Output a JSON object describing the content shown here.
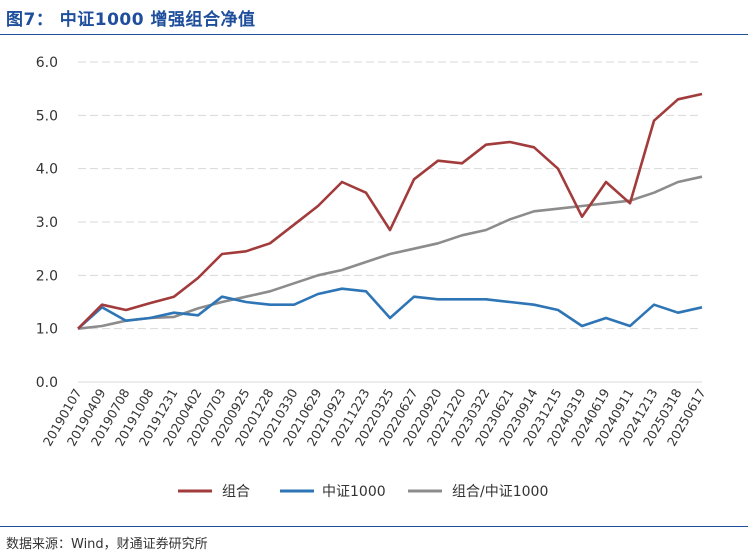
{
  "header": {
    "title": "图7： 中证1000 增强组合净值"
  },
  "footer": {
    "source": "数据来源：Wind，财通证券研究所"
  },
  "colors": {
    "accent": "#1e4e9c",
    "portfolio": "#a23b3b",
    "index": "#2e75b6",
    "ratio": "#8c8c8c",
    "grid": "#d9d9d9"
  },
  "chart_data": {
    "type": "line",
    "title": "",
    "xlabel": "",
    "ylabel": "",
    "ylim": [
      0,
      6
    ],
    "yticks": [
      "0.0",
      "1.0",
      "2.0",
      "3.0",
      "4.0",
      "5.0",
      "6.0"
    ],
    "grid": "horizontal dashed",
    "legend": "bottom-center",
    "x_tick_labels": [
      "20190107",
      "20190409",
      "20190708",
      "20191008",
      "20191231",
      "20200402",
      "20200703",
      "20200925",
      "20201228",
      "20210330",
      "20210629",
      "20210923",
      "20211223",
      "20220325",
      "20220627",
      "20220920",
      "20221220",
      "20230322",
      "20230621",
      "20230914",
      "20231215",
      "20240319",
      "20240619",
      "20240911",
      "20241213",
      "20250318",
      "20250617"
    ],
    "x": [
      "20190107",
      "20190409",
      "20190708",
      "20191008",
      "20191231",
      "20200402",
      "20200703",
      "20200925",
      "20201228",
      "20210330",
      "20210629",
      "20210923",
      "20211223",
      "20220325",
      "20220627",
      "20220920",
      "20221220",
      "20230322",
      "20230621",
      "20230914",
      "20231215",
      "20240319",
      "20240619",
      "20240911",
      "20241213",
      "20250318",
      "20250617"
    ],
    "series": [
      {
        "name": "组合",
        "values": [
          1.0,
          1.45,
          1.35,
          1.48,
          1.6,
          1.95,
          2.4,
          2.45,
          2.6,
          2.95,
          3.3,
          3.75,
          3.55,
          2.85,
          3.8,
          4.15,
          4.1,
          4.45,
          4.5,
          4.4,
          4.0,
          3.1,
          3.75,
          3.35,
          4.9,
          5.3,
          5.4
        ]
      },
      {
        "name": "中证1000",
        "values": [
          1.0,
          1.4,
          1.15,
          1.2,
          1.3,
          1.25,
          1.6,
          1.5,
          1.45,
          1.45,
          1.65,
          1.75,
          1.7,
          1.2,
          1.6,
          1.55,
          1.55,
          1.55,
          1.5,
          1.45,
          1.35,
          1.05,
          1.2,
          1.05,
          1.45,
          1.3,
          1.4
        ]
      },
      {
        "name": "组合/中证1000",
        "values": [
          1.0,
          1.05,
          1.15,
          1.2,
          1.22,
          1.38,
          1.5,
          1.6,
          1.7,
          1.85,
          2.0,
          2.1,
          2.25,
          2.4,
          2.5,
          2.6,
          2.75,
          2.85,
          3.05,
          3.2,
          3.25,
          3.3,
          3.35,
          3.4,
          3.55,
          3.75,
          3.85
        ]
      }
    ]
  }
}
